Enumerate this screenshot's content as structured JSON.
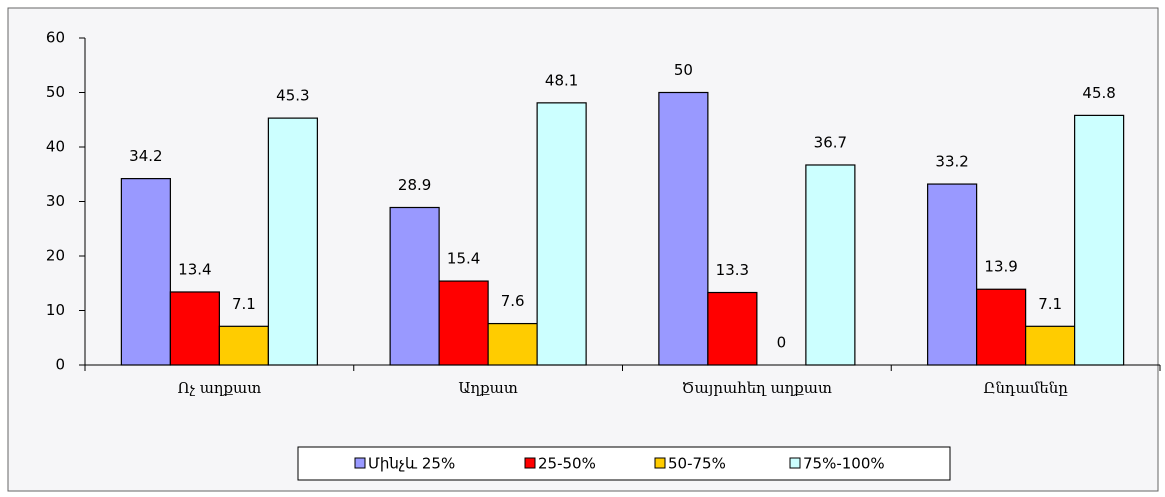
{
  "chart_data": {
    "type": "bar",
    "categories": [
      "Ոչ աղքատ",
      "Աղքատ",
      "Ծայրահեղ աղքատ",
      "Ընդամենը"
    ],
    "series": [
      {
        "name": "Մինչև 25%",
        "color": "#9999ff",
        "values": [
          34.2,
          28.9,
          50,
          33.2
        ]
      },
      {
        "name": "25-50%",
        "color": "#ff0000",
        "values": [
          13.4,
          15.4,
          13.3,
          13.9
        ]
      },
      {
        "name": "50-75%",
        "color": "#ffcc00",
        "values": [
          7.1,
          7.6,
          0,
          7.1
        ]
      },
      {
        "name": "75%-100%",
        "color": "#ccffff",
        "values": [
          45.3,
          48.1,
          36.7,
          45.8
        ]
      }
    ],
    "ylim": [
      0,
      60
    ],
    "yticks": [
      0,
      10,
      20,
      30,
      40,
      50,
      60
    ],
    "grid": false,
    "legend": "bottom"
  }
}
